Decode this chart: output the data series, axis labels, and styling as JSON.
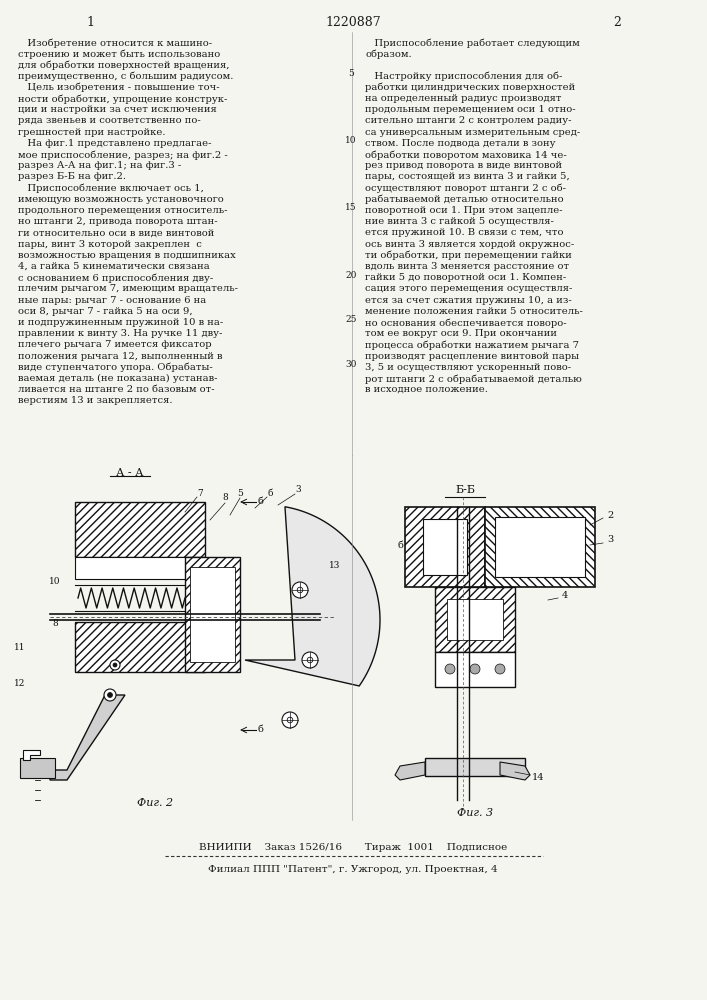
{
  "patent_number": "1220887",
  "col1_number": "1",
  "col2_number": "2",
  "background_color": "#f5f5f0",
  "text_color": "#1a1a1a",
  "line_numbers": [
    "5",
    "10",
    "15",
    "20",
    "25",
    "30"
  ],
  "line_number_rows": [
    3,
    9,
    15,
    21,
    25,
    29
  ],
  "col1_text": [
    "   Изобретение относится к машино-",
    "строению и может быть использовано",
    "для обработки поверхностей вращения,",
    "преимущественно, с большим радиусом.",
    "   Цель изобретения - повышение точ-",
    "ности обработки, упрощение конструк-",
    "ции и настройки за счет исключения",
    "ряда звеньев и соответственно по-",
    "грешностей при настройке.",
    "   На фиг.1 представлено предлагае-",
    "мое приспособление, разрез; на фиг.2 -",
    "разрез А-А на фиг.1; на фиг.3 -",
    "разрез Б-Б на фиг.2.",
    "   Приспособление включает ось 1,",
    "имеющую возможность установочного",
    "продольного перемещения относитель-",
    "но штанги 2, привода поворота штан-",
    "ги относительно оси в виде винтовой",
    "пары, винт 3 которой закреплен  с",
    "возможностью вращения в подшипниках",
    "4, а гайка 5 кинематически связана",
    "с основанием 6 приспособления дву-",
    "плечим рычагом 7, имеющим вращатель-",
    "ные пары: рычаг 7 - основание 6 на",
    "оси 8, рычаг 7 - гайка 5 на оси 9,",
    "и подпружиненным пружиной 10 в на-",
    "правлении к винту 3. На ручке 11 дву-",
    "плечего рычага 7 имеется фиксатор",
    "положения рычага 12, выполненный в",
    "виде ступенчатого упора. Обрабаты-",
    "ваемая деталь (не показана) устанав-",
    "ливается на штанге 2 по базовым от-",
    "верстиям 13 и закрепляется."
  ],
  "col2_text": [
    "   Приспособление работает следующим",
    "образом.",
    "",
    "   Настройку приспособления для об-",
    "работки цилиндрических поверхностей",
    "на определенный радиус производят",
    "продольным перемещением оси 1 отно-",
    "сительно штанги 2 с контролем радиу-",
    "са универсальным измерительным сред-",
    "ством. После подвода детали в зону",
    "обработки поворотом маховика 14 че-",
    "рез привод поворота в виде винтовой",
    "пары, состоящей из винта 3 и гайки 5,",
    "осуществляют поворот штанги 2 с об-",
    "рабатываемой деталью относительно",
    "поворотной оси 1. При этом зацепле-",
    "ние винта 3 с гайкой 5 осуществля-",
    "ется пружиной 10. В связи с тем, что",
    "ось винта 3 является хордой окружнос-",
    "ти обработки, при перемещении гайки",
    "вдоль винта 3 меняется расстояние от",
    "гайки 5 до поворотной оси 1. Компен-",
    "сация этого перемещения осуществля-",
    "ется за счет сжатия пружины 10, а из-",
    "менение положения гайки 5 относитель-",
    "но основания обеспечивается поворо-",
    "том ее вокруг оси 9. При окончании",
    "процесса обработки нажатием рычага 7",
    "производят расцепление винтовой пары",
    "3, 5 и осуществляют ускоренный пово-",
    "рот штанги 2 с обрабатываемой деталью",
    "в исходное положение."
  ],
  "fig2_label": "А - А",
  "fig3_label": "Б-Б",
  "fig2_caption": "Фиг. 2",
  "fig3_caption": "Фиг. 3",
  "footer_line1": "ВНИИПИ    Заказ 1526/16       Тираж  1001    Подписное",
  "footer_line2": "Филиал ППП \"Патент\", г. Ужгород, ул. Проектная, 4",
  "hatch_color": "#555555",
  "drawing_line_color": "#111111"
}
